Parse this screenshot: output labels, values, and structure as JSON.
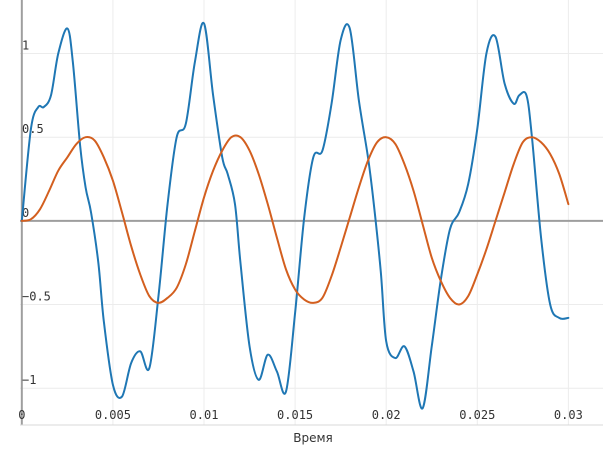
{
  "chart_data": {
    "type": "line",
    "title": "",
    "xlabel": "Время",
    "ylabel": "",
    "xlim": [
      -0.0001,
      0.0319
    ],
    "ylim": [
      -1.22,
      1.32
    ],
    "x_ticks": [
      0,
      0.005,
      0.01,
      0.015,
      0.02,
      0.025,
      0.03
    ],
    "x_tick_labels": [
      "0",
      "0.005",
      "0.01",
      "0.015",
      "0.02",
      "0.025",
      "0.03"
    ],
    "y_ticks": [
      -1,
      -0.5,
      0,
      0.5,
      1
    ],
    "y_tick_labels": [
      "−1",
      "−0.5",
      "0",
      "0.5",
      "1"
    ],
    "grid": true,
    "legend": "none",
    "colors": {
      "series1": "#1f77b4",
      "series2": "#d35f1f",
      "axis": "#9e9e9e",
      "grid": "#ececec"
    },
    "series": [
      {
        "color": "#1f77b4",
        "x": [
          0,
          0.0005,
          0.0009,
          0.0012,
          0.0016,
          0.002,
          0.0025,
          0.0028,
          0.0032,
          0.0035,
          0.0038,
          0.0042,
          0.0045,
          0.005,
          0.0055,
          0.006,
          0.0065,
          0.007,
          0.0075,
          0.008,
          0.0085,
          0.009,
          0.0095,
          0.01,
          0.0105,
          0.011,
          0.0113,
          0.0117,
          0.012,
          0.0125,
          0.013,
          0.0135,
          0.014,
          0.0145,
          0.015,
          0.0155,
          0.016,
          0.0165,
          0.017,
          0.0175,
          0.018,
          0.0185,
          0.019,
          0.0193,
          0.0197,
          0.02,
          0.0205,
          0.021,
          0.0215,
          0.022,
          0.0225,
          0.023,
          0.0235,
          0.024,
          0.0245,
          0.025,
          0.0255,
          0.026,
          0.0265,
          0.027,
          0.0273,
          0.0277,
          0.028,
          0.0285,
          0.029,
          0.0295,
          0.03
        ],
        "y": [
          0,
          0.55,
          0.68,
          0.68,
          0.75,
          1.0,
          1.15,
          0.95,
          0.45,
          0.2,
          0.05,
          -0.25,
          -0.6,
          -0.98,
          -1.05,
          -0.85,
          -0.78,
          -0.88,
          -0.45,
          0.1,
          0.5,
          0.58,
          0.95,
          1.18,
          0.75,
          0.38,
          0.28,
          0.1,
          -0.25,
          -0.75,
          -0.95,
          -0.8,
          -0.9,
          -1.02,
          -0.55,
          0.02,
          0.38,
          0.42,
          0.7,
          1.08,
          1.15,
          0.72,
          0.38,
          0.12,
          -0.3,
          -0.72,
          -0.82,
          -0.75,
          -0.9,
          -1.12,
          -0.75,
          -0.35,
          -0.05,
          0.05,
          0.22,
          0.55,
          1.0,
          1.1,
          0.82,
          0.7,
          0.75,
          0.75,
          0.5,
          -0.1,
          -0.5,
          -0.58,
          -0.58
        ]
      },
      {
        "color": "#d35f1f",
        "x": [
          0,
          0.0005,
          0.001,
          0.0015,
          0.002,
          0.0025,
          0.003,
          0.0035,
          0.004,
          0.0045,
          0.005,
          0.0055,
          0.006,
          0.0065,
          0.007,
          0.0075,
          0.008,
          0.0085,
          0.009,
          0.0095,
          0.01,
          0.0105,
          0.011,
          0.0115,
          0.012,
          0.0125,
          0.013,
          0.0135,
          0.014,
          0.0145,
          0.015,
          0.0155,
          0.016,
          0.0165,
          0.017,
          0.0175,
          0.018,
          0.0185,
          0.019,
          0.0195,
          0.02,
          0.0205,
          0.021,
          0.0215,
          0.022,
          0.0225,
          0.023,
          0.0235,
          0.024,
          0.0245,
          0.025,
          0.0255,
          0.026,
          0.0265,
          0.027,
          0.0275,
          0.028,
          0.0285,
          0.029,
          0.0295,
          0.03
        ],
        "y": [
          0,
          0.01,
          0.07,
          0.18,
          0.3,
          0.38,
          0.46,
          0.5,
          0.48,
          0.38,
          0.24,
          0.05,
          -0.15,
          -0.32,
          -0.45,
          -0.49,
          -0.46,
          -0.4,
          -0.26,
          -0.06,
          0.14,
          0.3,
          0.42,
          0.5,
          0.5,
          0.42,
          0.28,
          0.1,
          -0.1,
          -0.29,
          -0.41,
          -0.47,
          -0.49,
          -0.46,
          -0.33,
          -0.16,
          0.02,
          0.2,
          0.36,
          0.47,
          0.5,
          0.46,
          0.34,
          0.18,
          -0.02,
          -0.22,
          -0.36,
          -0.46,
          -0.5,
          -0.45,
          -0.32,
          -0.17,
          0.0,
          0.17,
          0.34,
          0.47,
          0.5,
          0.47,
          0.4,
          0.28,
          0.1
        ]
      }
    ]
  }
}
